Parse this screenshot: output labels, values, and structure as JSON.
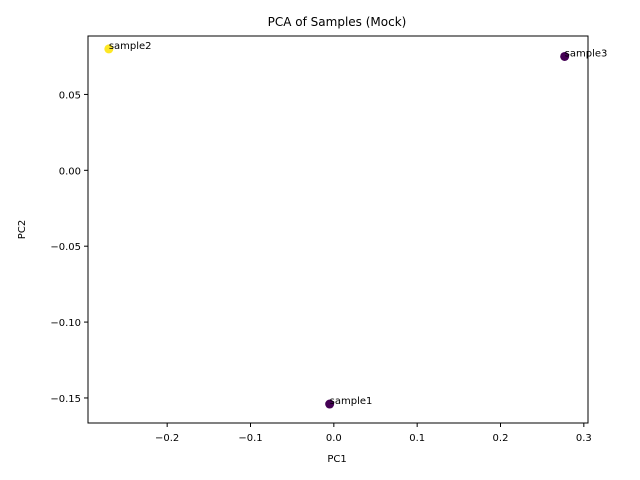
{
  "chart_data": {
    "type": "scatter",
    "title": "PCA of Samples (Mock)",
    "xlabel": "PC1",
    "ylabel": "PC2",
    "xlim": [
      -0.295,
      0.305
    ],
    "ylim": [
      -0.1665,
      0.0885
    ],
    "xticks": [
      -0.2,
      -0.1,
      0.0,
      0.1,
      0.2,
      0.3
    ],
    "xtick_labels": [
      "−0.2",
      "−0.1",
      "0.0",
      "0.1",
      "0.2",
      "0.3"
    ],
    "yticks": [
      -0.15,
      -0.1,
      -0.05,
      0.0,
      0.05
    ],
    "ytick_labels": [
      "−0.15",
      "−0.10",
      "−0.05",
      "0.00",
      "0.05"
    ],
    "grid": false,
    "points": [
      {
        "label": "sample1",
        "x": -0.005,
        "y": -0.154,
        "color": "#440154"
      },
      {
        "label": "sample2",
        "x": -0.27,
        "y": 0.08,
        "color": "#fde725"
      },
      {
        "label": "sample3",
        "x": 0.277,
        "y": 0.075,
        "color": "#440154"
      }
    ]
  }
}
